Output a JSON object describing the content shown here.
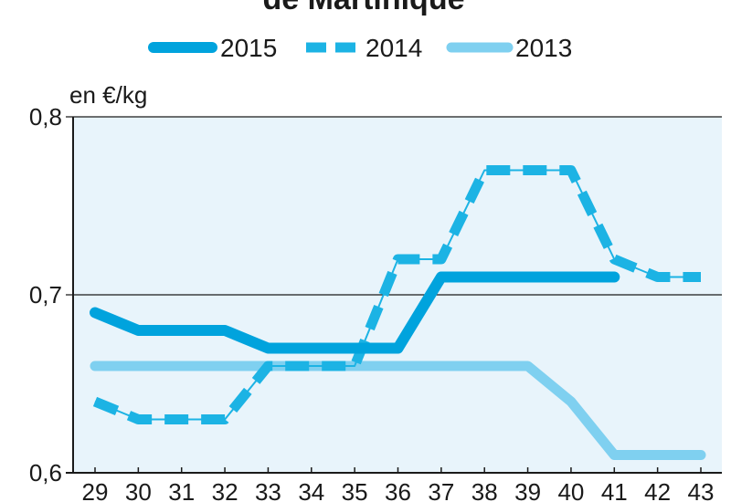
{
  "chart_data": {
    "type": "line",
    "title": "de Martinique",
    "ylabel": "en €/kg",
    "xlabel": "",
    "x": [
      29,
      30,
      31,
      32,
      33,
      34,
      35,
      36,
      37,
      38,
      39,
      40,
      41,
      42,
      43
    ],
    "x_tick_labels": [
      "29",
      "30",
      "31",
      "32",
      "33",
      "34",
      "35",
      "36",
      "37",
      "38",
      "39",
      "40",
      "41",
      "42",
      "43"
    ],
    "y_tick_labels": [
      "0,6",
      "0,7",
      "0,8"
    ],
    "y_ticks": [
      0.6,
      0.7,
      0.8
    ],
    "ylim": [
      0.6,
      0.8
    ],
    "xlim": [
      29,
      43
    ],
    "grid": "horizontal at 0.7",
    "legend_position": "top",
    "background_color": "#e8f4fb",
    "series": [
      {
        "name": "2015",
        "style": "solid-thick",
        "color": "#00a3dd",
        "x": [
          29,
          30,
          31,
          32,
          33,
          34,
          35,
          36,
          37,
          38,
          39,
          40,
          41
        ],
        "y": [
          0.69,
          0.68,
          0.68,
          0.68,
          0.67,
          0.67,
          0.67,
          0.67,
          0.71,
          0.71,
          0.71,
          0.71,
          0.71
        ]
      },
      {
        "name": "2014",
        "style": "dashed",
        "color": "#1cb3e4",
        "x": [
          29,
          30,
          31,
          32,
          33,
          34,
          35,
          36,
          37,
          38,
          39,
          40,
          41,
          42,
          43
        ],
        "y": [
          0.64,
          0.63,
          0.63,
          0.63,
          0.66,
          0.66,
          0.66,
          0.72,
          0.72,
          0.77,
          0.77,
          0.77,
          0.72,
          0.71,
          0.71
        ]
      },
      {
        "name": "2013",
        "style": "solid-light",
        "color": "#7fd0f0",
        "x": [
          29,
          30,
          31,
          32,
          33,
          34,
          35,
          36,
          37,
          38,
          39,
          40,
          41,
          42,
          43
        ],
        "y": [
          0.66,
          0.66,
          0.66,
          0.66,
          0.66,
          0.66,
          0.66,
          0.66,
          0.66,
          0.66,
          0.66,
          0.64,
          0.61,
          0.61,
          0.61
        ]
      }
    ]
  }
}
